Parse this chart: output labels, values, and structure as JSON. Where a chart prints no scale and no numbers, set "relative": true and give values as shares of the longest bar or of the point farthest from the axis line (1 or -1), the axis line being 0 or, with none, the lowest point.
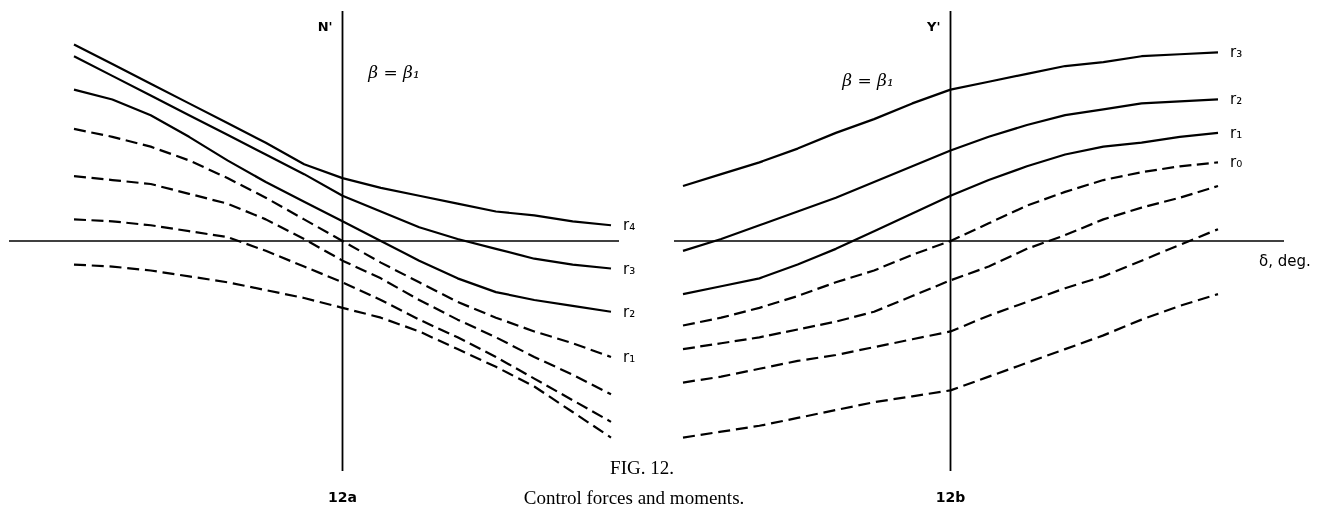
{
  "chart_data": [
    {
      "type": "line",
      "relative": true,
      "title": "12a",
      "ylabel": "N'",
      "categories": [
        null,
        null,
        null,
        null,
        null,
        null,
        null,
        null,
        null,
        null,
        null,
        null,
        null,
        null,
        null
      ],
      "annotations": [
        "β = β₁",
        "FIG. 12.",
        "Control forces and moments."
      ],
      "series": [
        {
          "name": "r₄",
          "color": "#000000",
          "line_style": "solid",
          "values": [
            1.0,
            0.9,
            0.8,
            0.7,
            0.6,
            0.5,
            0.39,
            0.32,
            0.27,
            0.23,
            0.19,
            0.15,
            0.13,
            0.1,
            0.08
          ]
        },
        {
          "name": "r₃",
          "color": "#000000",
          "line_style": "solid",
          "values": [
            0.94,
            0.84,
            0.74,
            0.64,
            0.54,
            0.44,
            0.34,
            0.23,
            0.15,
            0.07,
            0.01,
            -0.04,
            -0.09,
            -0.12,
            -0.14
          ]
        },
        {
          "name": "r₂",
          "color": "#000000",
          "line_style": "solid",
          "values": [
            0.77,
            0.72,
            0.64,
            0.53,
            0.41,
            0.3,
            0.2,
            0.1,
            0.0,
            -0.1,
            -0.19,
            -0.26,
            -0.3,
            -0.33,
            -0.36
          ]
        },
        {
          "name": "r₁",
          "color": "#000000",
          "line_style": "dashed",
          "values": [
            0.57,
            0.53,
            0.48,
            0.41,
            0.32,
            0.22,
            0.11,
            0.0,
            -0.11,
            -0.21,
            -0.31,
            -0.39,
            -0.46,
            -0.52,
            -0.59
          ]
        },
        {
          "color": "#000000",
          "line_style": "dashed",
          "values": [
            0.33,
            0.31,
            0.29,
            0.24,
            0.19,
            0.11,
            0.01,
            -0.1,
            -0.19,
            -0.3,
            -0.4,
            -0.49,
            -0.59,
            -0.68,
            -0.78
          ]
        },
        {
          "color": "#000000",
          "line_style": "dashed",
          "values": [
            0.11,
            0.1,
            0.08,
            0.05,
            0.02,
            -0.05,
            -0.13,
            -0.21,
            -0.3,
            -0.4,
            -0.49,
            -0.59,
            -0.7,
            -0.81,
            -0.92
          ]
        },
        {
          "color": "#000000",
          "line_style": "dashed",
          "values": [
            -0.12,
            -0.13,
            -0.15,
            -0.18,
            -0.21,
            -0.25,
            -0.29,
            -0.34,
            -0.39,
            -0.46,
            -0.55,
            -0.64,
            -0.74,
            -0.87,
            -1.0
          ]
        }
      ]
    },
    {
      "type": "line",
      "relative": true,
      "title": "12b",
      "ylabel": "Y'",
      "xlabel": "δ, deg.",
      "categories": [
        null,
        null,
        null,
        null,
        null,
        null,
        null,
        null,
        null,
        null,
        null,
        null,
        null,
        null,
        null
      ],
      "annotations": [
        "β = β₁"
      ],
      "series": [
        {
          "name": "r₃",
          "color": "#000000",
          "line_style": "solid",
          "values": [
            0.28,
            0.34,
            0.4,
            0.47,
            0.55,
            0.62,
            0.7,
            0.77,
            0.81,
            0.85,
            0.89,
            0.91,
            0.94,
            0.95,
            0.96
          ]
        },
        {
          "name": "r₂",
          "color": "#000000",
          "line_style": "solid",
          "values": [
            -0.05,
            0.01,
            0.08,
            0.15,
            0.22,
            0.3,
            0.38,
            0.46,
            0.53,
            0.59,
            0.64,
            0.67,
            0.7,
            0.71,
            0.72
          ]
        },
        {
          "name": "r₁",
          "color": "#000000",
          "line_style": "solid",
          "values": [
            -0.27,
            -0.23,
            -0.19,
            -0.12,
            -0.04,
            0.05,
            0.14,
            0.23,
            0.31,
            0.38,
            0.44,
            0.48,
            0.5,
            0.53,
            0.55
          ]
        },
        {
          "name": "r₀",
          "color": "#000000",
          "line_style": "dashed",
          "values": [
            -0.43,
            -0.39,
            -0.34,
            -0.28,
            -0.21,
            -0.15,
            -0.07,
            0.0,
            0.09,
            0.18,
            0.25,
            0.31,
            0.35,
            0.38,
            0.4
          ]
        },
        {
          "color": "#000000",
          "line_style": "dashed",
          "values": [
            -0.55,
            -0.52,
            -0.49,
            -0.45,
            -0.41,
            -0.36,
            -0.28,
            -0.2,
            -0.13,
            -0.04,
            0.03,
            0.11,
            0.17,
            0.22,
            0.28
          ]
        },
        {
          "color": "#000000",
          "line_style": "dashed",
          "values": [
            -0.72,
            -0.69,
            -0.65,
            -0.61,
            -0.58,
            -0.54,
            -0.5,
            -0.46,
            -0.38,
            -0.31,
            -0.24,
            -0.18,
            -0.1,
            -0.02,
            0.06
          ]
        },
        {
          "color": "#000000",
          "line_style": "dashed",
          "values": [
            -1.0,
            -0.97,
            -0.94,
            -0.9,
            -0.86,
            -0.82,
            -0.79,
            -0.76,
            -0.69,
            -0.62,
            -0.55,
            -0.48,
            -0.4,
            -0.33,
            -0.27
          ]
        }
      ]
    }
  ]
}
